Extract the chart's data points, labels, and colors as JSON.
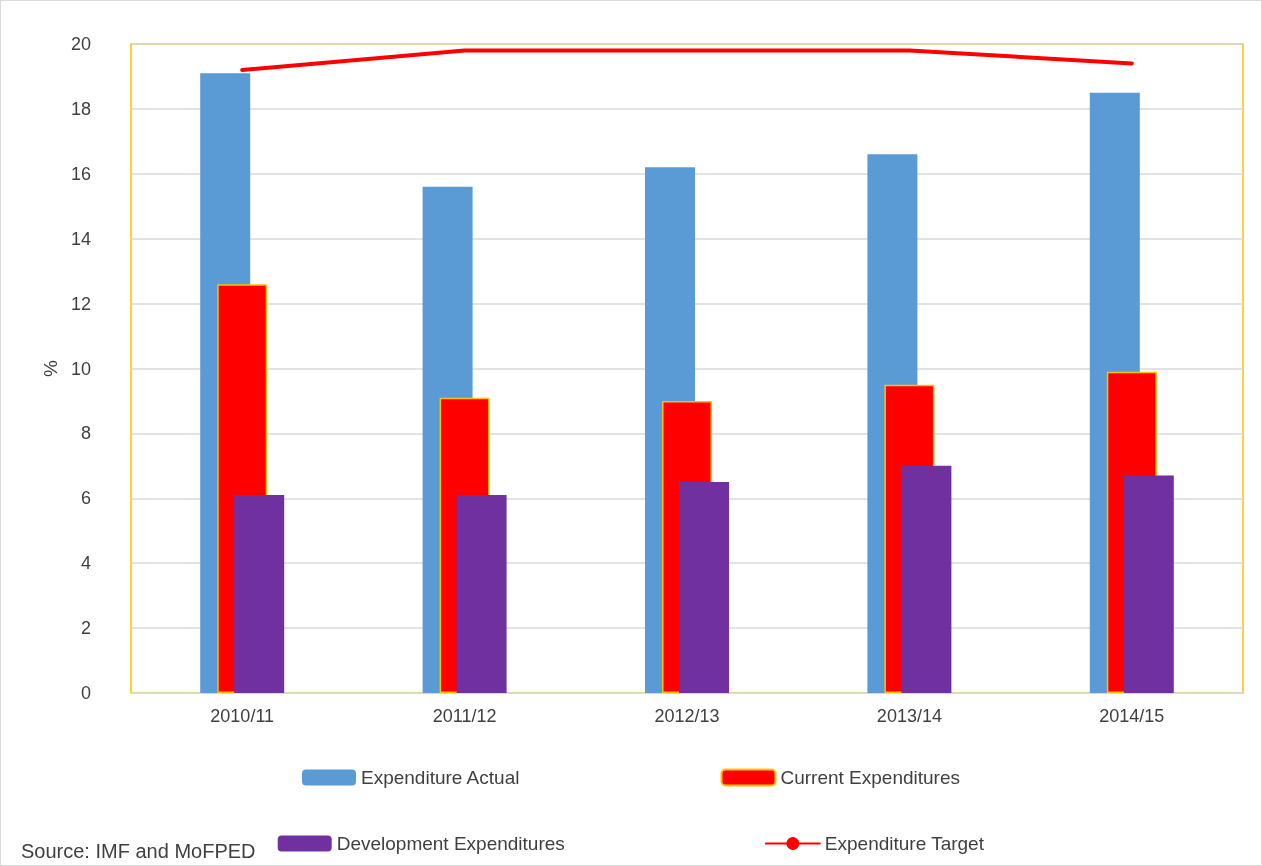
{
  "chart_data": {
    "type": "bar",
    "ylabel": "%",
    "categories": [
      "2010/11",
      "2011/12",
      "2012/13",
      "2013/14",
      "2014/15"
    ],
    "series": [
      {
        "name": "Expenditure Actual",
        "color": "#5b9bd5",
        "values": [
          19.1,
          15.6,
          16.2,
          16.6,
          18.5
        ]
      },
      {
        "name": "Current Expenditures",
        "color": "#ff0000",
        "values": [
          12.6,
          9.1,
          9.0,
          9.5,
          9.9
        ]
      },
      {
        "name": "Development Expenditures",
        "color": "#7030a0",
        "values": [
          6.1,
          6.1,
          6.5,
          7.0,
          6.7
        ]
      },
      {
        "name": "Expenditure Target",
        "type": "line",
        "color": "#ff0000",
        "line_style": "solid",
        "marker": "none",
        "values": [
          19.2,
          19.8,
          19.8,
          19.8,
          19.4
        ]
      }
    ],
    "ylim": [
      0,
      20
    ],
    "yticks": [
      0,
      2,
      4,
      6,
      8,
      10,
      12,
      14,
      16,
      18,
      20
    ],
    "grid": "y",
    "legend": "bottom",
    "annotations": [
      "Source: IMF and MoFPED"
    ]
  }
}
